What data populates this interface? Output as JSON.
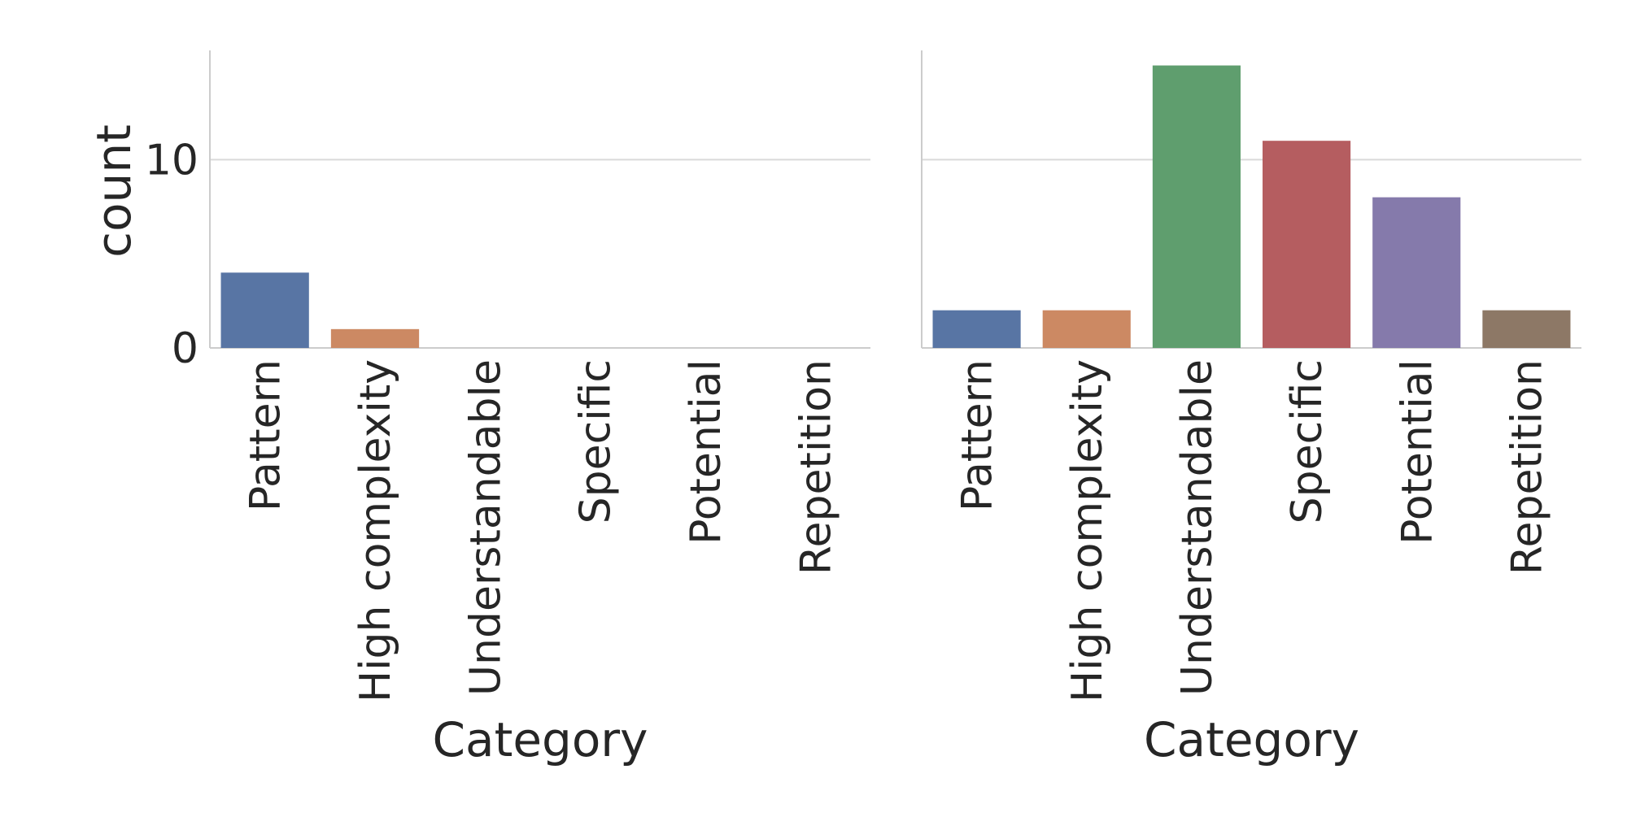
{
  "chart_data": [
    {
      "type": "bar",
      "categories": [
        "Pattern",
        "High complexity",
        "Understandable",
        "Specific",
        "Potential",
        "Repetition"
      ],
      "values": [
        4,
        1,
        0,
        0,
        0,
        0
      ],
      "colors": [
        "#5875a4",
        "#cc8963",
        "#5f9e6e",
        "#b55d60",
        "#857aab",
        "#8d7866"
      ],
      "xlabel": "Category",
      "ylabel": "count",
      "ylim": [
        0,
        15.8
      ],
      "yticks": [
        0,
        10
      ],
      "grid": "horizontal"
    },
    {
      "type": "bar",
      "categories": [
        "Pattern",
        "High complexity",
        "Understandable",
        "Specific",
        "Potential",
        "Repetition"
      ],
      "values": [
        2,
        2,
        15,
        11,
        8,
        2
      ],
      "colors": [
        "#5875a4",
        "#cc8963",
        "#5f9e6e",
        "#b55d60",
        "#857aab",
        "#8d7866"
      ],
      "xlabel": "Category",
      "ylabel": "",
      "ylim": [
        0,
        15.8
      ],
      "yticks": [],
      "grid": "horizontal"
    }
  ]
}
